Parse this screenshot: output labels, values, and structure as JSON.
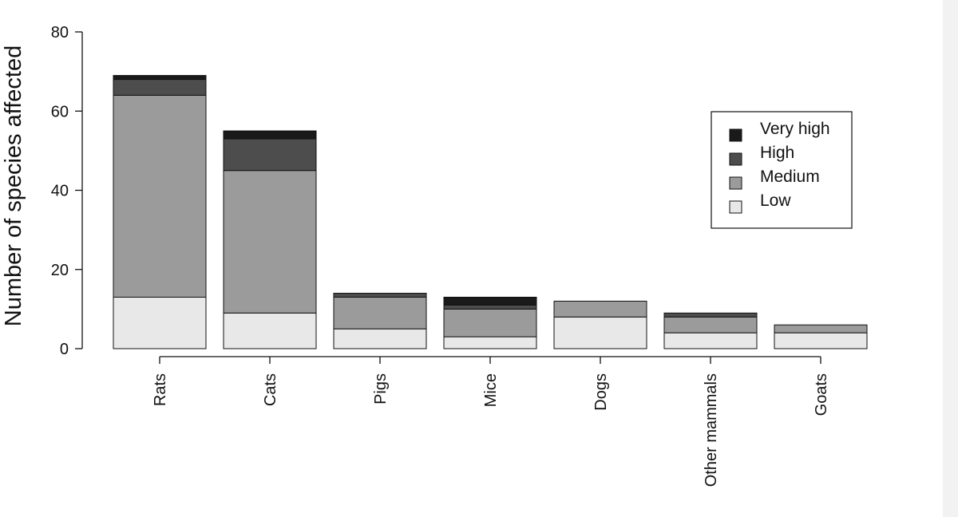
{
  "chart_data": {
    "type": "bar",
    "stacked": true,
    "title": "",
    "xlabel": "",
    "ylabel": "Number of species affected",
    "ylim": [
      0,
      80
    ],
    "yticks": [
      0,
      20,
      40,
      60,
      80
    ],
    "categories": [
      "Rats",
      "Cats",
      "Pigs",
      "Mice",
      "Dogs",
      "Other mammals",
      "Goats"
    ],
    "series": [
      {
        "name": "Low",
        "color": "#e8e8e8",
        "values": [
          13,
          9,
          5,
          3,
          8,
          4,
          4
        ]
      },
      {
        "name": "Medium",
        "color": "#9b9b9b",
        "values": [
          51,
          36,
          8,
          7,
          4,
          4,
          2
        ]
      },
      {
        "name": "High",
        "color": "#4d4d4d",
        "values": [
          4,
          8,
          1,
          1,
          0,
          1,
          0
        ]
      },
      {
        "name": "Very high",
        "color": "#1a1a1a",
        "values": [
          1,
          2,
          0,
          2,
          0,
          0,
          0
        ]
      }
    ],
    "legend": {
      "position": "top-right",
      "order": [
        "Very high",
        "High",
        "Medium",
        "Low"
      ]
    },
    "grid": false
  }
}
